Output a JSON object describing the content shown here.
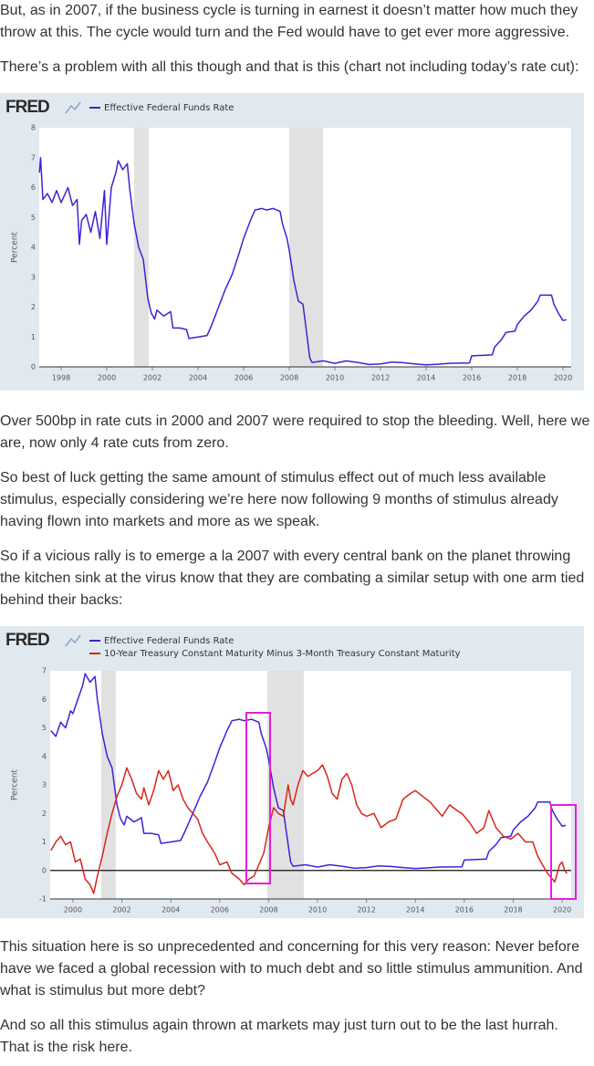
{
  "paragraphs": [
    "But, as in 2007, if the business cycle is turning in earnest it doesn’t matter how much they throw at this. The cycle would turn and the Fed would have to get ever more aggressive.",
    "There’s a problem with all this though and that is this (chart not including today’s rate cut):",
    "Over 500bp in rate cuts in 2000 and 2007 were required to stop the bleeding. Well, here we are, now only 4 rate cuts from zero.",
    "So best of luck getting the same amount of stimulus effect out of much less available stimulus, especially considering we’re here now following 9 months of stimulus already having flown into markets and more as we speak.",
    "So if a vicious rally is to emerge a la 2007 with every central bank on the planet throwing the kitchen sink at the virus know that they are combating a similar setup with one arm tied behind their backs:",
    "This situation here is so unprecedented and concerning for this very reason: Never before have we faced a global recession with to much debt and so little stimulus ammunition. And what is stimulus but more debt?",
    "And so all this stimulus again thrown at markets may just turn out to be the last hurrah. That is the risk here."
  ],
  "chart_data": [
    {
      "type": "line",
      "logo": "FRED",
      "y_label": "Percent",
      "xlim": [
        1997.04,
        2020.36
      ],
      "ylim": [
        0,
        8
      ],
      "xticks": [
        1998,
        2000,
        2002,
        2004,
        2006,
        2008,
        2010,
        2012,
        2014,
        2016,
        2018,
        2020
      ],
      "yticks": [
        0,
        1,
        2,
        3,
        4,
        5,
        6,
        7,
        8
      ],
      "grid": false,
      "zero_line": false,
      "recessions": [
        [
          2001.2,
          2001.84
        ],
        [
          2008.0,
          2009.48
        ]
      ],
      "series": [
        {
          "name": "Effective Federal Funds Rate",
          "color": "#3f22d6",
          "x": [
            1997.05,
            1997.1,
            1997.2,
            1997.4,
            1997.6,
            1997.8,
            1998.0,
            1998.3,
            1998.5,
            1998.7,
            1998.8,
            1998.9,
            1999.1,
            1999.3,
            1999.5,
            1999.7,
            1999.9,
            2000.0,
            2000.2,
            2000.4,
            2000.5,
            2000.7,
            2000.9,
            2001.0,
            2001.2,
            2001.4,
            2001.6,
            2001.8,
            2001.95,
            2002.1,
            2002.2,
            2002.5,
            2002.8,
            2002.9,
            2003.2,
            2003.5,
            2003.6,
            2004.0,
            2004.4,
            2004.6,
            2004.9,
            2005.2,
            2005.5,
            2005.8,
            2006.0,
            2006.3,
            2006.5,
            2006.8,
            2007.0,
            2007.3,
            2007.6,
            2007.7,
            2007.9,
            2008.0,
            2008.2,
            2008.4,
            2008.6,
            2008.75,
            2008.9,
            2009.0,
            2009.5,
            2010.0,
            2010.5,
            2011.0,
            2011.5,
            2012.0,
            2012.5,
            2013.0,
            2013.5,
            2014.0,
            2014.5,
            2015.0,
            2015.9,
            2016.0,
            2016.9,
            2017.0,
            2017.3,
            2017.5,
            2017.9,
            2018.0,
            2018.3,
            2018.6,
            2018.9,
            2019.0,
            2019.5,
            2019.6,
            2019.8,
            2020.0,
            2020.15
          ],
          "values": [
            6.5,
            7.0,
            5.6,
            5.8,
            5.5,
            5.9,
            5.5,
            6.0,
            5.4,
            5.6,
            4.1,
            4.9,
            5.1,
            4.5,
            5.2,
            4.3,
            5.9,
            4.1,
            6.0,
            6.5,
            6.9,
            6.6,
            6.8,
            6.0,
            4.8,
            4.0,
            3.6,
            2.3,
            1.8,
            1.6,
            1.9,
            1.7,
            1.85,
            1.3,
            1.3,
            1.25,
            0.95,
            1.0,
            1.05,
            1.4,
            2.0,
            2.6,
            3.1,
            3.8,
            4.3,
            4.9,
            5.25,
            5.3,
            5.25,
            5.3,
            5.2,
            4.8,
            4.3,
            3.9,
            2.9,
            2.2,
            2.1,
            1.2,
            0.3,
            0.15,
            0.2,
            0.12,
            0.2,
            0.15,
            0.08,
            0.1,
            0.16,
            0.14,
            0.1,
            0.07,
            0.09,
            0.12,
            0.13,
            0.37,
            0.4,
            0.66,
            0.91,
            1.15,
            1.2,
            1.42,
            1.7,
            1.9,
            2.2,
            2.4,
            2.4,
            2.1,
            1.8,
            1.55,
            1.58
          ]
        }
      ]
    },
    {
      "type": "line",
      "logo": "FRED",
      "y_label": "Percent",
      "xlim": [
        1999.07,
        2020.37
      ],
      "ylim": [
        -1,
        7
      ],
      "xticks": [
        2000,
        2002,
        2004,
        2006,
        2008,
        2010,
        2012,
        2014,
        2016,
        2018,
        2020
      ],
      "yticks": [
        -1,
        0,
        1,
        2,
        3,
        4,
        5,
        6,
        7
      ],
      "grid": false,
      "zero_line": true,
      "recessions": [
        [
          2001.16,
          2001.75
        ],
        [
          2007.95,
          2009.44
        ]
      ],
      "series": [
        {
          "name": "Effective Federal Funds Rate",
          "color": "#3f22d6",
          "x": [
            1999.1,
            1999.3,
            1999.5,
            1999.7,
            1999.9,
            2000.0,
            2000.2,
            2000.4,
            2000.5,
            2000.7,
            2000.9,
            2001.0,
            2001.2,
            2001.4,
            2001.6,
            2001.8,
            2001.95,
            2002.1,
            2002.2,
            2002.5,
            2002.8,
            2002.9,
            2003.2,
            2003.5,
            2003.6,
            2004.0,
            2004.4,
            2004.6,
            2004.9,
            2005.2,
            2005.5,
            2005.8,
            2006.0,
            2006.3,
            2006.5,
            2006.8,
            2007.0,
            2007.3,
            2007.6,
            2007.7,
            2007.9,
            2008.0,
            2008.2,
            2008.4,
            2008.6,
            2008.75,
            2008.9,
            2009.0,
            2009.5,
            2010.0,
            2010.5,
            2011.0,
            2011.5,
            2012.0,
            2012.5,
            2013.0,
            2013.5,
            2014.0,
            2014.5,
            2015.0,
            2015.9,
            2016.0,
            2016.9,
            2017.0,
            2017.3,
            2017.5,
            2017.9,
            2018.0,
            2018.3,
            2018.6,
            2018.9,
            2019.0,
            2019.5,
            2019.6,
            2019.8,
            2020.0,
            2020.15
          ],
          "values": [
            4.9,
            4.7,
            5.2,
            5.0,
            5.6,
            5.5,
            6.0,
            6.5,
            6.9,
            6.6,
            6.8,
            6.0,
            4.8,
            4.0,
            3.6,
            2.3,
            1.8,
            1.6,
            1.9,
            1.7,
            1.85,
            1.3,
            1.3,
            1.25,
            0.95,
            1.0,
            1.05,
            1.4,
            2.0,
            2.6,
            3.1,
            3.8,
            4.3,
            4.9,
            5.25,
            5.3,
            5.25,
            5.3,
            5.2,
            4.8,
            4.3,
            3.9,
            2.9,
            2.2,
            2.1,
            1.2,
            0.3,
            0.15,
            0.2,
            0.12,
            0.2,
            0.15,
            0.08,
            0.1,
            0.16,
            0.14,
            0.1,
            0.07,
            0.09,
            0.12,
            0.13,
            0.37,
            0.4,
            0.66,
            0.91,
            1.15,
            1.2,
            1.42,
            1.7,
            1.9,
            2.2,
            2.4,
            2.4,
            2.1,
            1.8,
            1.55,
            1.58
          ]
        },
        {
          "name": "10-Year Treasury Constant Maturity Minus 3-Month Treasury Constant Maturity",
          "color": "#d7261c",
          "x": [
            1999.1,
            1999.3,
            1999.5,
            1999.7,
            1999.9,
            2000.1,
            2000.3,
            2000.5,
            2000.7,
            2000.85,
            2001.0,
            2001.2,
            2001.4,
            2001.6,
            2001.8,
            2002.0,
            2002.2,
            2002.4,
            2002.6,
            2002.8,
            2002.9,
            2003.1,
            2003.3,
            2003.5,
            2003.7,
            2003.9,
            2004.1,
            2004.3,
            2004.5,
            2004.7,
            2004.9,
            2005.1,
            2005.3,
            2005.5,
            2005.8,
            2006.0,
            2006.3,
            2006.5,
            2006.8,
            2007.0,
            2007.2,
            2007.4,
            2007.6,
            2007.8,
            2008.0,
            2008.2,
            2008.4,
            2008.6,
            2008.8,
            2008.9,
            2009.0,
            2009.2,
            2009.4,
            2009.6,
            2009.8,
            2010.0,
            2010.2,
            2010.4,
            2010.6,
            2010.8,
            2011.0,
            2011.2,
            2011.4,
            2011.6,
            2011.8,
            2012.0,
            2012.3,
            2012.6,
            2012.9,
            2013.2,
            2013.5,
            2013.8,
            2014.0,
            2014.3,
            2014.6,
            2014.9,
            2015.1,
            2015.4,
            2015.7,
            2015.9,
            2016.2,
            2016.5,
            2016.8,
            2017.0,
            2017.3,
            2017.6,
            2017.9,
            2018.2,
            2018.5,
            2018.8,
            2019.0,
            2019.2,
            2019.4,
            2019.6,
            2019.7,
            2019.9,
            2020.0,
            2020.1,
            2020.2
          ],
          "values": [
            0.7,
            1.0,
            1.2,
            0.9,
            1.0,
            0.3,
            0.4,
            -0.3,
            -0.5,
            -0.8,
            -0.2,
            0.5,
            1.3,
            2.0,
            2.6,
            3.0,
            3.6,
            3.2,
            2.7,
            2.5,
            2.9,
            2.3,
            2.8,
            3.5,
            3.2,
            3.5,
            2.8,
            3.0,
            2.5,
            2.2,
            2.0,
            1.8,
            1.3,
            1.0,
            0.6,
            0.2,
            0.3,
            -0.1,
            -0.3,
            -0.5,
            -0.3,
            -0.2,
            0.2,
            0.6,
            1.5,
            2.2,
            2.0,
            1.9,
            3.0,
            2.5,
            2.3,
            3.0,
            3.5,
            3.3,
            3.4,
            3.5,
            3.7,
            3.3,
            2.7,
            2.5,
            3.2,
            3.4,
            3.0,
            2.3,
            2.0,
            1.9,
            2.0,
            1.5,
            1.7,
            1.8,
            2.5,
            2.7,
            2.8,
            2.6,
            2.4,
            2.1,
            1.9,
            2.3,
            2.1,
            2.0,
            1.7,
            1.3,
            1.5,
            2.1,
            1.5,
            1.2,
            1.1,
            1.3,
            1.0,
            1.0,
            0.5,
            0.2,
            -0.1,
            -0.3,
            -0.4,
            0.2,
            0.3,
            0.0,
            -0.1
          ]
        }
      ]
    }
  ]
}
